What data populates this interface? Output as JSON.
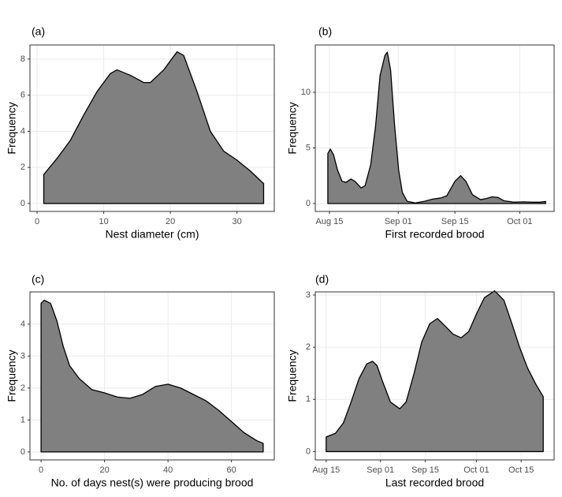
{
  "chart_data": [
    {
      "type": "area",
      "title": "(a)",
      "x_label": "Nest diameter (cm)",
      "y_label": "Frequency",
      "color": "#808080",
      "x": [
        1,
        3,
        5,
        7,
        9,
        11,
        12,
        14,
        16,
        17,
        19,
        21,
        22,
        24,
        26,
        28,
        30,
        32,
        34
      ],
      "values": [
        1.6,
        2.5,
        3.5,
        4.9,
        6.2,
        7.2,
        7.4,
        7.1,
        6.7,
        6.7,
        7.4,
        8.4,
        8.2,
        6.2,
        4.0,
        2.9,
        2.4,
        1.8,
        1.1
      ],
      "xlim": [
        -1.07,
        35.6
      ],
      "xticks": [
        0,
        10,
        20,
        30
      ],
      "ylim": [
        -0.44,
        8.78
      ],
      "yticks": [
        0,
        2,
        4,
        6,
        8
      ],
      "grid": true
    },
    {
      "type": "area",
      "title": "(b)",
      "x_label": "First recorded brood",
      "y_label": "Frequency",
      "color": "#808080",
      "x": [
        226.6,
        227.2,
        228.0,
        229.0,
        230.1,
        231.1,
        232.3,
        233.3,
        234.8,
        235.8,
        237.2,
        238.4,
        239.5,
        240.7,
        241.3,
        242.1,
        243.1,
        244.1,
        245.0,
        246.2,
        248.2,
        250.5,
        252.5,
        254.5,
        256.0,
        258.0,
        259.4,
        260.7,
        262.3,
        264.3,
        265.8,
        267.2,
        268.6,
        270.1,
        272.5,
        275.0,
        277.0,
        279.0,
        280.4
      ],
      "values": [
        4.5,
        4.9,
        4.4,
        3.0,
        2.0,
        1.9,
        2.2,
        2.0,
        1.4,
        1.6,
        3.5,
        7,
        11.5,
        13.3,
        13.6,
        12,
        7,
        3,
        1,
        0.2,
        0.05,
        0.2,
        0.4,
        0.5,
        0.7,
        2.0,
        2.5,
        2.0,
        0.8,
        0.35,
        0.45,
        0.6,
        0.55,
        0.25,
        0.12,
        0.15,
        0.12,
        0.12,
        0.18
      ],
      "xlim": [
        223.5,
        282.5
      ],
      "xticks": [
        {
          "value": 227,
          "label": "Aug 15"
        },
        {
          "value": 244,
          "label": "Sep 01"
        },
        {
          "value": 258,
          "label": "Sep 15"
        },
        {
          "value": 274,
          "label": "Oct 01"
        }
      ],
      "ylim": [
        -0.71,
        14.25
      ],
      "yticks": [
        0,
        5,
        10
      ],
      "grid": true
    },
    {
      "type": "area",
      "title": "(c)",
      "x_label": "No. of days nest(s) were producing brood",
      "y_label": "Frequency",
      "color": "#808080",
      "x": [
        0,
        1,
        3,
        5,
        7,
        9,
        12,
        16,
        20,
        24,
        28,
        32,
        36,
        40,
        44,
        48,
        52,
        56,
        60,
        64,
        68,
        70
      ],
      "values": [
        4.65,
        4.75,
        4.65,
        4.1,
        3.3,
        2.7,
        2.3,
        1.95,
        1.85,
        1.72,
        1.68,
        1.8,
        2.05,
        2.12,
        2.0,
        1.8,
        1.6,
        1.3,
        0.95,
        0.6,
        0.35,
        0.27
      ],
      "xlim": [
        -3.5,
        73.5
      ],
      "xticks": [
        0,
        20,
        40,
        60
      ],
      "ylim": [
        -0.25,
        5.01
      ],
      "yticks": [
        0,
        1,
        2,
        3,
        4
      ],
      "grid": true
    },
    {
      "type": "area",
      "title": "(d)",
      "x_label": "Last recorded brood",
      "y_label": "Frequency",
      "color": "#808080",
      "x": [
        227,
        229.9,
        232.4,
        234.8,
        237.3,
        239.7,
        241.5,
        242.9,
        244.6,
        247.1,
        250.0,
        252.0,
        254.5,
        256.9,
        259.4,
        261.8,
        264.3,
        266.7,
        269.2,
        271.6,
        274.1,
        276.5,
        279.7,
        282.6,
        285.1,
        287.5,
        290.0,
        292.5,
        294.9
      ],
      "values": [
        0.28,
        0.35,
        0.55,
        0.95,
        1.4,
        1.68,
        1.73,
        1.65,
        1.35,
        0.95,
        0.82,
        0.95,
        1.5,
        2.1,
        2.45,
        2.55,
        2.4,
        2.25,
        2.18,
        2.3,
        2.65,
        2.95,
        3.08,
        2.9,
        2.45,
        2.0,
        1.6,
        1.3,
        1.05
      ],
      "xlim": [
        223.6,
        298.3
      ],
      "xticks": [
        {
          "value": 227,
          "label": "Aug 15"
        },
        {
          "value": 244,
          "label": "Sep 01"
        },
        {
          "value": 258,
          "label": "Sep 15"
        },
        {
          "value": 274,
          "label": "Oct 01"
        },
        {
          "value": 288,
          "label": "Oct 15"
        }
      ],
      "ylim": [
        -0.16,
        3.06
      ],
      "yticks": [
        0,
        1,
        2,
        3
      ],
      "grid": true
    }
  ]
}
